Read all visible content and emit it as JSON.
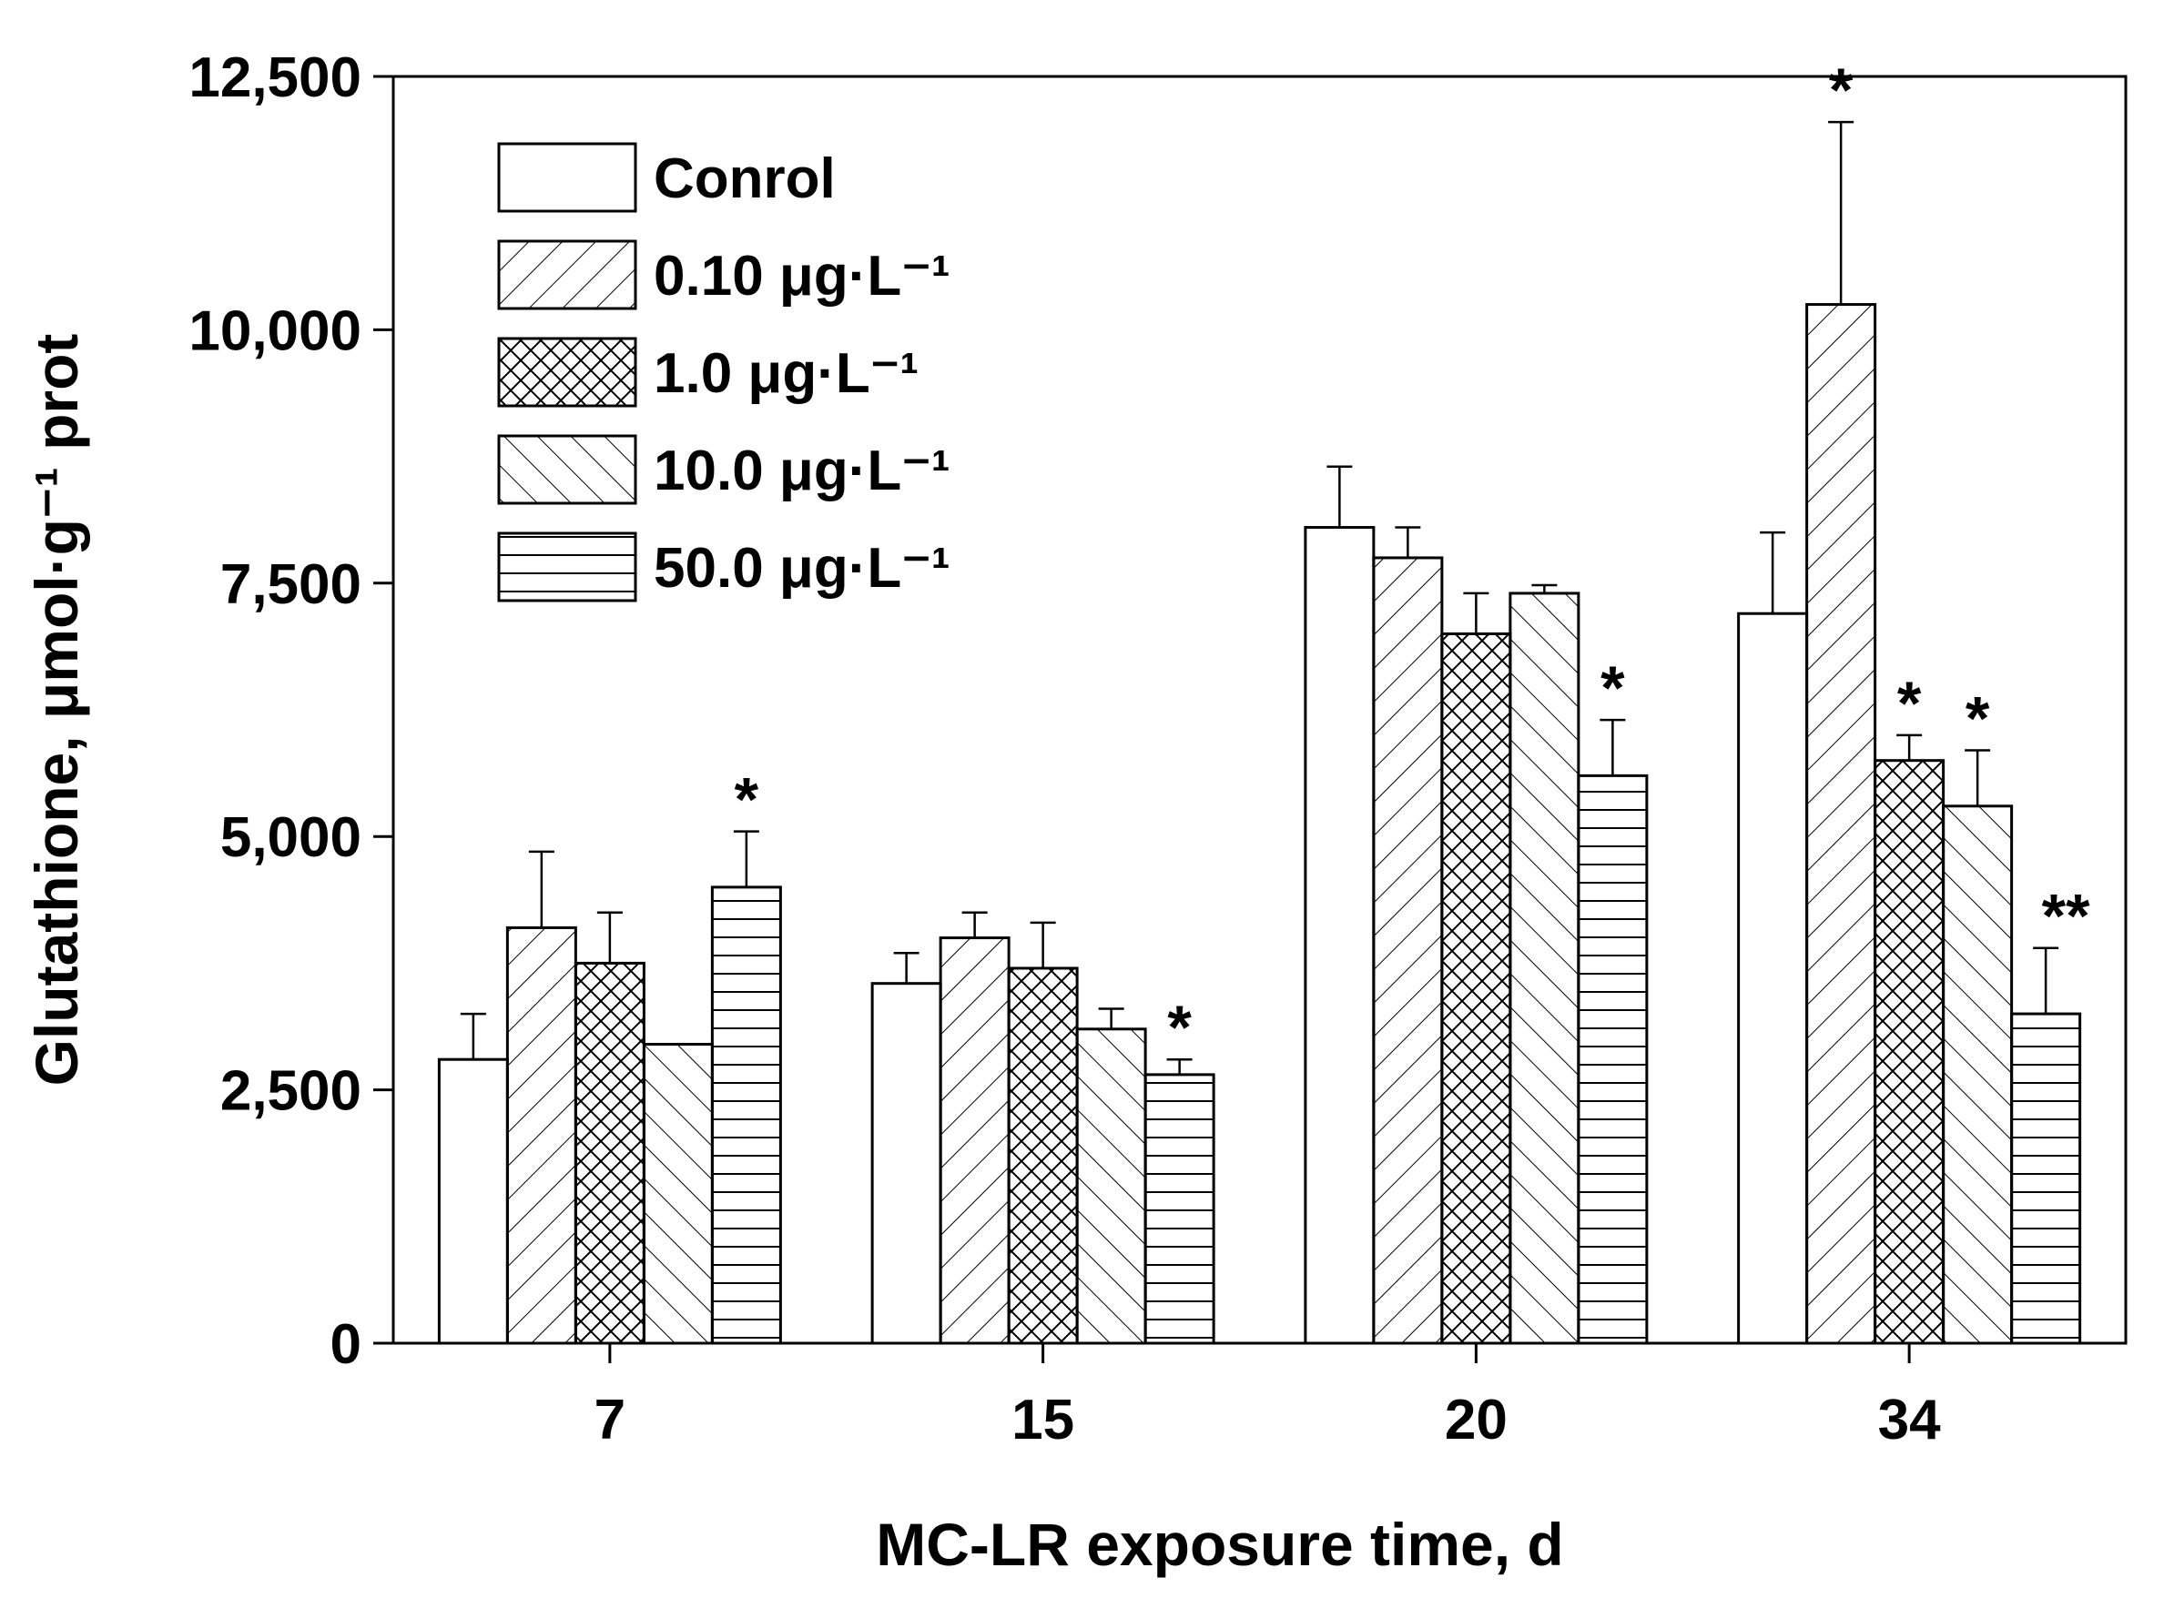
{
  "chart_data": {
    "type": "bar",
    "title": "",
    "xlabel": "MC-LR exposure time, d",
    "ylabel": "Glutathione, μmol·g⁻¹ prot",
    "ylim": [
      0,
      12500
    ],
    "yticks": [
      "0",
      "2,500",
      "5,000",
      "7,500",
      "10,000",
      "12,500"
    ],
    "categories": [
      "7",
      "15",
      "20",
      "34"
    ],
    "legend_position": "top-left",
    "series": [
      {
        "name": "Conrol",
        "pattern": "none",
        "values": [
          2800,
          3550,
          8050,
          7200
        ],
        "errors": [
          450,
          300,
          600,
          800
        ],
        "sig": [
          "",
          "",
          "",
          ""
        ]
      },
      {
        "name": "0.10 μg·L⁻¹",
        "pattern": "forward-hatch",
        "values": [
          4100,
          4000,
          7750,
          10250
        ],
        "errors": [
          750,
          250,
          300,
          1800
        ],
        "sig": [
          "",
          "",
          "",
          "*"
        ]
      },
      {
        "name": "1.0   μg·L⁻¹",
        "pattern": "crosshatch",
        "values": [
          3750,
          3700,
          7000,
          5750
        ],
        "errors": [
          500,
          450,
          400,
          250
        ],
        "sig": [
          "",
          "",
          "",
          "*"
        ]
      },
      {
        "name": "10.0 μg·L⁻¹",
        "pattern": "back-hatch",
        "values": [
          2950,
          3100,
          7400,
          5300
        ],
        "errors": [
          0,
          200,
          80,
          550
        ],
        "sig": [
          "",
          "",
          "",
          "*"
        ]
      },
      {
        "name": "50.0 μg·L⁻¹",
        "pattern": "horizontal",
        "values": [
          4500,
          2650,
          5600,
          3250
        ],
        "errors": [
          550,
          150,
          550,
          650
        ],
        "sig": [
          "*",
          "*",
          "*",
          "**"
        ]
      }
    ]
  }
}
